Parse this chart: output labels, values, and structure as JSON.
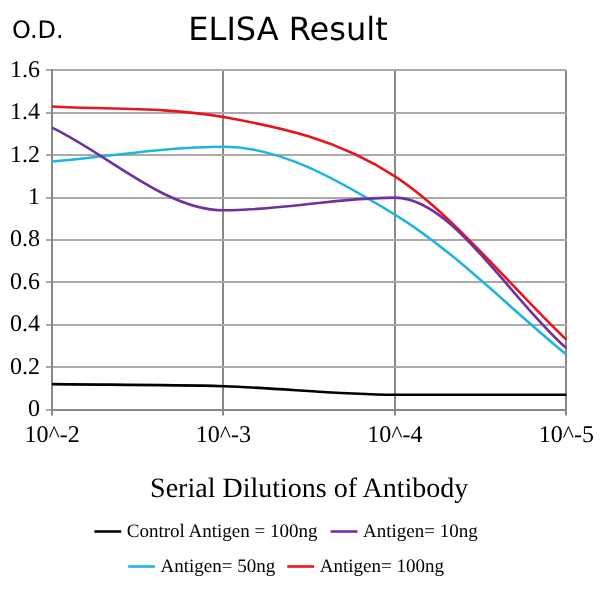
{
  "chart_data": {
    "type": "line",
    "title": "ELISA Result",
    "ylabel": "O.D.",
    "xlabel": "Serial Dilutions of Antibody",
    "categories": [
      "10^-2",
      "10^-3",
      "10^-4",
      "10^-5"
    ],
    "series": [
      {
        "name": "Control Antigen = 100ng",
        "color": "#000000",
        "values": [
          0.12,
          0.11,
          0.07,
          0.07
        ]
      },
      {
        "name": "Antigen= 10ng",
        "color": "#7030a0",
        "values": [
          1.33,
          0.94,
          1.0,
          0.29
        ]
      },
      {
        "name": "Antigen= 50ng",
        "color": "#1fb5e0",
        "values": [
          1.17,
          1.24,
          0.92,
          0.26
        ]
      },
      {
        "name": "Antigen= 100ng",
        "color": "#e8141e",
        "values": [
          1.43,
          1.38,
          1.1,
          0.33
        ]
      }
    ],
    "ylim": [
      0,
      1.6
    ],
    "yticks": [
      0,
      0.2,
      0.4,
      0.6,
      0.8,
      1,
      1.2,
      1.4,
      1.6
    ],
    "grid": true,
    "legend": "bottom",
    "marker": "none",
    "line_style": "solid"
  }
}
